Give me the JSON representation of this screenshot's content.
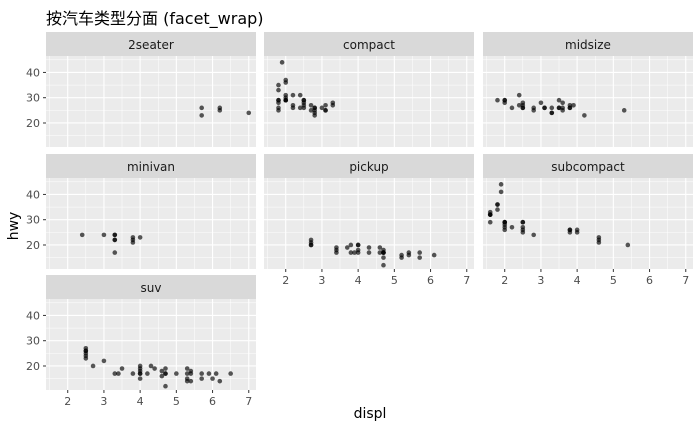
{
  "chart_data": {
    "type": "scatter",
    "layout": "facet_wrap",
    "title": "按汽车类型分面 (facet_wrap)",
    "xlabel": "displ",
    "ylabel": "hwy",
    "xlim": [
      1.4,
      7.2
    ],
    "ylim": [
      10.5,
      46.5
    ],
    "x_ticks": [
      2,
      3,
      4,
      5,
      6,
      7
    ],
    "y_ticks": [
      20,
      30,
      40
    ],
    "point_color": "#000000",
    "point_alpha": 0.65,
    "panel_background": "#ebebeb",
    "strip_background": "#d9d9d9",
    "grid_color": "#ffffff",
    "facets": [
      {
        "label": "2seater",
        "points": [
          [
            5.7,
            26
          ],
          [
            5.7,
            23
          ],
          [
            6.2,
            26
          ],
          [
            6.2,
            25
          ],
          [
            7.0,
            24
          ]
        ]
      },
      {
        "label": "compact",
        "points": [
          [
            1.8,
            29
          ],
          [
            1.8,
            29
          ],
          [
            2.0,
            31
          ],
          [
            2.0,
            30
          ],
          [
            2.8,
            26
          ],
          [
            2.8,
            26
          ],
          [
            3.1,
            27
          ],
          [
            1.8,
            26
          ],
          [
            1.8,
            25
          ],
          [
            2.8,
            25
          ],
          [
            3.1,
            25
          ],
          [
            3.1,
            25
          ],
          [
            1.9,
            44
          ],
          [
            2.0,
            29
          ],
          [
            2.0,
            29
          ],
          [
            2.5,
            29
          ],
          [
            2.5,
            29
          ],
          [
            2.2,
            27
          ],
          [
            2.2,
            31
          ],
          [
            2.4,
            31
          ],
          [
            2.4,
            26
          ],
          [
            2.5,
            26
          ],
          [
            2.7,
            25
          ],
          [
            2.7,
            27
          ],
          [
            3.0,
            26
          ],
          [
            3.3,
            27
          ],
          [
            1.8,
            28
          ],
          [
            2.0,
            37
          ],
          [
            2.0,
            36
          ],
          [
            2.0,
            29
          ],
          [
            2.5,
            28
          ],
          [
            1.8,
            33
          ],
          [
            1.8,
            35
          ],
          [
            2.5,
            27
          ],
          [
            2.8,
            24
          ],
          [
            2.8,
            23
          ],
          [
            3.3,
            28
          ],
          [
            2.2,
            26
          ]
        ]
      },
      {
        "label": "midsize",
        "points": [
          [
            1.8,
            29
          ],
          [
            2.0,
            29
          ],
          [
            2.0,
            28
          ],
          [
            2.0,
            29
          ],
          [
            2.2,
            26
          ],
          [
            2.5,
            27
          ],
          [
            2.5,
            26
          ],
          [
            2.5,
            26
          ],
          [
            2.4,
            31
          ],
          [
            2.5,
            28
          ],
          [
            2.4,
            27
          ],
          [
            2.8,
            26
          ],
          [
            2.8,
            25
          ],
          [
            3.0,
            28
          ],
          [
            3.1,
            26
          ],
          [
            3.1,
            26
          ],
          [
            3.3,
            26
          ],
          [
            3.3,
            24
          ],
          [
            3.5,
            26
          ],
          [
            3.5,
            26
          ],
          [
            3.6,
            26
          ],
          [
            3.8,
            26
          ],
          [
            3.8,
            26
          ],
          [
            3.9,
            27
          ],
          [
            3.5,
            29
          ],
          [
            3.6,
            28
          ],
          [
            4.2,
            23
          ],
          [
            5.3,
            25
          ],
          [
            3.3,
            24
          ],
          [
            3.6,
            25
          ],
          [
            3.8,
            27
          ]
        ]
      },
      {
        "label": "minivan",
        "points": [
          [
            2.4,
            24
          ],
          [
            3.0,
            24
          ],
          [
            3.3,
            22
          ],
          [
            3.3,
            22
          ],
          [
            3.3,
            24
          ],
          [
            3.3,
            24
          ],
          [
            3.3,
            17
          ],
          [
            3.8,
            22
          ],
          [
            3.8,
            21
          ],
          [
            3.8,
            23
          ],
          [
            4.0,
            23
          ]
        ]
      },
      {
        "label": "pickup",
        "points": [
          [
            2.7,
            20
          ],
          [
            2.7,
            20
          ],
          [
            2.7,
            22
          ],
          [
            3.4,
            17
          ],
          [
            3.4,
            19
          ],
          [
            4.0,
            18
          ],
          [
            4.0,
            20
          ],
          [
            4.7,
            17
          ],
          [
            4.7,
            15
          ],
          [
            4.7,
            17
          ],
          [
            5.7,
            17
          ],
          [
            6.1,
            16
          ],
          [
            3.7,
            19
          ],
          [
            3.9,
            17
          ],
          [
            4.7,
            12
          ],
          [
            4.7,
            17
          ],
          [
            5.2,
            15
          ],
          [
            5.2,
            16
          ],
          [
            4.0,
            20
          ],
          [
            4.0,
            17
          ],
          [
            4.6,
            17
          ],
          [
            5.4,
            17
          ],
          [
            5.4,
            16
          ],
          [
            4.6,
            19
          ],
          [
            4.3,
            17
          ],
          [
            4.3,
            19
          ],
          [
            3.8,
            17
          ],
          [
            3.8,
            20
          ],
          [
            4.7,
            18
          ],
          [
            5.7,
            15
          ],
          [
            2.7,
            21
          ],
          [
            3.4,
            18
          ]
        ]
      },
      {
        "label": "subcompact",
        "points": [
          [
            3.8,
            26
          ],
          [
            3.8,
            25
          ],
          [
            4.0,
            26
          ],
          [
            4.0,
            25
          ],
          [
            4.6,
            23
          ],
          [
            4.6,
            22
          ],
          [
            5.4,
            20
          ],
          [
            4.6,
            21
          ],
          [
            1.6,
            33
          ],
          [
            1.6,
            32
          ],
          [
            1.6,
            32
          ],
          [
            1.6,
            29
          ],
          [
            1.6,
            32
          ],
          [
            1.8,
            34
          ],
          [
            1.8,
            36
          ],
          [
            1.8,
            36
          ],
          [
            2.0,
            29
          ],
          [
            2.0,
            26
          ],
          [
            2.0,
            27
          ],
          [
            2.0,
            29
          ],
          [
            2.5,
            27
          ],
          [
            2.5,
            29
          ],
          [
            2.5,
            25
          ],
          [
            2.2,
            27
          ],
          [
            1.9,
            44
          ],
          [
            1.9,
            41
          ],
          [
            2.5,
            26
          ],
          [
            2.8,
            24
          ],
          [
            2.0,
            28
          ],
          [
            2.0,
            29
          ],
          [
            2.5,
            29
          ],
          [
            3.8,
            26
          ]
        ]
      },
      {
        "label": "suv",
        "points": [
          [
            2.5,
            25
          ],
          [
            2.5,
            27
          ],
          [
            2.5,
            26
          ],
          [
            2.5,
            24
          ],
          [
            2.5,
            23
          ],
          [
            2.7,
            20
          ],
          [
            3.0,
            22
          ],
          [
            3.3,
            17
          ],
          [
            3.4,
            17
          ],
          [
            3.5,
            19
          ],
          [
            3.8,
            17
          ],
          [
            4.0,
            17
          ],
          [
            4.0,
            19
          ],
          [
            4.0,
            20
          ],
          [
            4.0,
            15
          ],
          [
            4.0,
            17
          ],
          [
            4.2,
            17
          ],
          [
            4.4,
            19
          ],
          [
            4.6,
            16
          ],
          [
            4.7,
            17
          ],
          [
            4.7,
            12
          ],
          [
            4.7,
            19
          ],
          [
            4.7,
            17
          ],
          [
            5.0,
            17
          ],
          [
            5.3,
            19
          ],
          [
            5.3,
            17
          ],
          [
            5.3,
            14
          ],
          [
            5.3,
            15
          ],
          [
            5.4,
            17
          ],
          [
            5.4,
            18
          ],
          [
            5.7,
            17
          ],
          [
            5.7,
            15
          ],
          [
            5.9,
            17
          ],
          [
            6.0,
            15
          ],
          [
            6.1,
            17
          ],
          [
            6.2,
            14
          ],
          [
            6.5,
            17
          ],
          [
            4.0,
            18
          ],
          [
            4.3,
            20
          ],
          [
            4.6,
            18
          ],
          [
            5.4,
            14
          ],
          [
            2.5,
            26
          ]
        ]
      }
    ]
  }
}
